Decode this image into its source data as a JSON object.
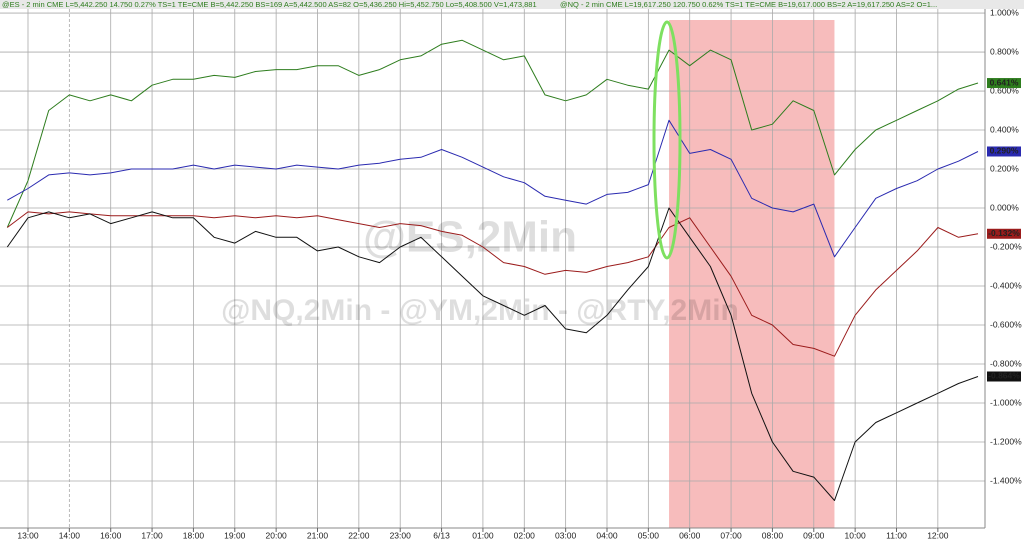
{
  "header": {
    "left": "@ES - 2 min CME L=5,442.250 14.750 0.27% TS=1 TE=CME B=5,442.250 BS=169 A=5,442.500 AS=82 O=5,436.250 Hi=5,452.750 Lo=5,408.500 V=1,473,881",
    "right": "@NQ - 2 min CME L=19,617.250 120.750 0.62% TS=1 TE=CME B=19,617.000 BS=2 A=19,617.250 AS=2 O=1..."
  },
  "chart_data": {
    "type": "line",
    "watermark": "@ES,2Min",
    "subtitle": "@NQ,2Min - @YM,2Min - @RTY,2Min",
    "xlim": [
      -0.677,
      23.14
    ],
    "ylim": [
      -1.641,
      1.031
    ],
    "grid": true,
    "highlight": [
      15.5,
      19.5
    ],
    "xticks": [
      {
        "value": 0,
        "label": "13:00"
      },
      {
        "value": 1,
        "label": "14:00"
      },
      {
        "value": 2,
        "label": "16:00"
      },
      {
        "value": 3,
        "label": "17:00"
      },
      {
        "value": 4,
        "label": "18:00"
      },
      {
        "value": 5,
        "label": "19:00"
      },
      {
        "value": 6,
        "label": "20:00"
      },
      {
        "value": 7,
        "label": "21:00"
      },
      {
        "value": 8,
        "label": "22:00"
      },
      {
        "value": 9,
        "label": "23:00"
      },
      {
        "value": 10,
        "label": "6/13"
      },
      {
        "value": 11,
        "label": "01:00"
      },
      {
        "value": 12,
        "label": "02:00"
      },
      {
        "value": 13,
        "label": "03:00"
      },
      {
        "value": 14,
        "label": "04:00"
      },
      {
        "value": 15,
        "label": "05:00"
      },
      {
        "value": 16,
        "label": "06:00"
      },
      {
        "value": 17,
        "label": "07:00"
      },
      {
        "value": 18,
        "label": "08:00"
      },
      {
        "value": 19,
        "label": "09:00"
      },
      {
        "value": 20,
        "label": "10:00"
      },
      {
        "value": 21,
        "label": "11:00"
      },
      {
        "value": 22,
        "label": "12:00"
      }
    ],
    "yticks": [
      {
        "value": 1,
        "label": "1.000%"
      },
      {
        "value": 0.8,
        "label": "0.800%"
      },
      {
        "value": 0.6,
        "label": "0.600%"
      },
      {
        "value": 0.4,
        "label": "0.400%"
      },
      {
        "value": 0.2,
        "label": "0.200%"
      },
      {
        "value": 0,
        "label": "0.000%"
      },
      {
        "value": -0.2,
        "label": "-0.200%"
      },
      {
        "value": -0.4,
        "label": "-0.400%"
      },
      {
        "value": -0.6,
        "label": "-0.600%"
      },
      {
        "value": -0.8,
        "label": "-0.800%"
      },
      {
        "value": -1,
        "label": "-1.000%"
      },
      {
        "value": -1.2,
        "label": "-1.200%"
      },
      {
        "value": -1.4,
        "label": "-1.400%"
      }
    ],
    "x": [
      -0.5,
      0,
      0.5,
      1,
      1.5,
      2,
      2.5,
      3,
      3.5,
      4,
      4.5,
      5,
      5.5,
      6,
      6.5,
      7,
      7.5,
      8,
      8.5,
      9,
      9.5,
      10,
      10.5,
      11,
      11.5,
      12,
      12.5,
      13,
      13.5,
      14,
      14.5,
      15,
      15.5,
      16,
      16.5,
      17,
      17.5,
      18,
      18.5,
      19,
      19.5,
      20,
      20.5,
      21,
      21.5,
      22,
      22.5,
      22.97
    ],
    "series": [
      {
        "color": "#2e7d1e",
        "last_label": "0.641%",
        "values": [
          -0.1,
          0.14,
          0.5,
          0.58,
          0.55,
          0.58,
          0.55,
          0.63,
          0.66,
          0.66,
          0.68,
          0.67,
          0.7,
          0.71,
          0.71,
          0.73,
          0.73,
          0.68,
          0.71,
          0.76,
          0.78,
          0.84,
          0.86,
          0.81,
          0.76,
          0.78,
          0.58,
          0.55,
          0.58,
          0.66,
          0.63,
          0.61,
          0.81,
          0.73,
          0.81,
          0.76,
          0.4,
          0.43,
          0.55,
          0.5,
          0.17,
          0.3,
          0.4,
          0.45,
          0.5,
          0.55,
          0.61,
          0.641
        ]
      },
      {
        "color": "#2a2ab0",
        "last_label": "0.290%",
        "values": [
          0.04,
          0.1,
          0.17,
          0.18,
          0.17,
          0.18,
          0.2,
          0.2,
          0.2,
          0.22,
          0.2,
          0.22,
          0.21,
          0.2,
          0.22,
          0.21,
          0.2,
          0.22,
          0.23,
          0.25,
          0.26,
          0.3,
          0.26,
          0.21,
          0.16,
          0.13,
          0.06,
          0.04,
          0.02,
          0.07,
          0.08,
          0.12,
          0.45,
          0.28,
          0.3,
          0.25,
          0.05,
          0.0,
          -0.02,
          0.02,
          -0.25,
          -0.1,
          0.05,
          0.1,
          0.14,
          0.2,
          0.24,
          0.29
        ]
      },
      {
        "color": "#9b1c1c",
        "last_label": "-0.132%",
        "values": [
          -0.1,
          -0.02,
          -0.03,
          -0.02,
          -0.03,
          -0.04,
          -0.04,
          -0.04,
          -0.04,
          -0.04,
          -0.05,
          -0.04,
          -0.05,
          -0.04,
          -0.05,
          -0.04,
          -0.06,
          -0.08,
          -0.1,
          -0.08,
          -0.09,
          -0.12,
          -0.14,
          -0.2,
          -0.28,
          -0.3,
          -0.34,
          -0.32,
          -0.33,
          -0.3,
          -0.28,
          -0.25,
          -0.1,
          -0.05,
          -0.2,
          -0.35,
          -0.55,
          -0.6,
          -0.7,
          -0.72,
          -0.76,
          -0.55,
          -0.42,
          -0.32,
          -0.22,
          -0.1,
          -0.15,
          -0.132
        ]
      },
      {
        "color": "#111111",
        "last_label": "-0.864%",
        "values": [
          -0.2,
          -0.05,
          -0.02,
          -0.05,
          -0.03,
          -0.08,
          -0.05,
          -0.02,
          -0.05,
          -0.05,
          -0.15,
          -0.18,
          -0.12,
          -0.15,
          -0.15,
          -0.22,
          -0.2,
          -0.25,
          -0.28,
          -0.2,
          -0.15,
          -0.25,
          -0.35,
          -0.45,
          -0.5,
          -0.55,
          -0.5,
          -0.62,
          -0.64,
          -0.55,
          -0.42,
          -0.3,
          0.0,
          -0.15,
          -0.3,
          -0.55,
          -0.95,
          -1.2,
          -1.35,
          -1.38,
          -1.5,
          -1.2,
          -1.1,
          -1.05,
          -1.0,
          -0.95,
          -0.9,
          -0.864
        ]
      }
    ]
  }
}
